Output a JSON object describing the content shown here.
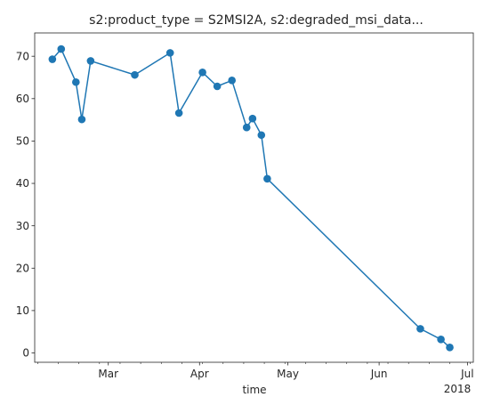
{
  "chart_data": {
    "type": "line",
    "title": "s2:product_type = S2MSI2A, s2:degraded_msi_data...",
    "xlabel": "time",
    "ylabel": "",
    "xlim": [
      "2018-02-04",
      "2018-07-03"
    ],
    "ylim": [
      -2.2,
      75.5
    ],
    "x_ticks": [
      {
        "date": "2018-03-01",
        "label": "Mar"
      },
      {
        "date": "2018-04-01",
        "label": "Apr"
      },
      {
        "date": "2018-05-01",
        "label": "May"
      },
      {
        "date": "2018-06-01",
        "label": "Jun"
      },
      {
        "date": "2018-07-01",
        "label": "Jul"
      }
    ],
    "x_offset_label": "2018",
    "y_ticks": [
      0,
      10,
      20,
      30,
      40,
      50,
      60,
      70
    ],
    "grid": false,
    "legend": "none",
    "series": [
      {
        "color": "#1f77b4",
        "markers": true,
        "points": [
          {
            "x": "2018-02-10",
            "y": 69.3
          },
          {
            "x": "2018-02-13",
            "y": 71.7
          },
          {
            "x": "2018-02-18",
            "y": 63.9
          },
          {
            "x": "2018-02-20",
            "y": 55.1
          },
          {
            "x": "2018-02-23",
            "y": 68.9
          },
          {
            "x": "2018-03-10",
            "y": 65.6
          },
          {
            "x": "2018-03-22",
            "y": 70.8
          },
          {
            "x": "2018-03-25",
            "y": 56.6
          },
          {
            "x": "2018-04-02",
            "y": 66.2
          },
          {
            "x": "2018-04-07",
            "y": 62.9
          },
          {
            "x": "2018-04-12",
            "y": 64.3
          },
          {
            "x": "2018-04-17",
            "y": 53.2
          },
          {
            "x": "2018-04-19",
            "y": 55.3
          },
          {
            "x": "2018-04-22",
            "y": 51.4
          },
          {
            "x": "2018-04-24",
            "y": 41.1
          },
          {
            "x": "2018-06-15",
            "y": 5.7
          },
          {
            "x": "2018-06-22",
            "y": 3.2
          },
          {
            "x": "2018-06-25",
            "y": 1.3
          }
        ]
      }
    ]
  }
}
